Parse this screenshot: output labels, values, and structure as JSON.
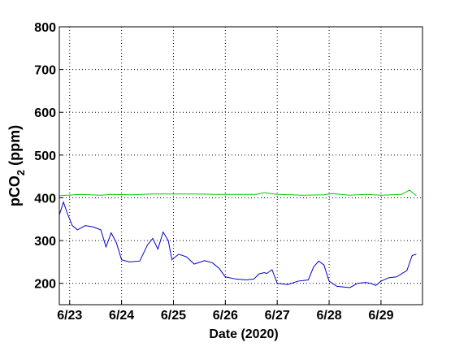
{
  "chart_data": {
    "type": "line",
    "ylabel_parts": [
      "pCO",
      "2",
      " (ppm)"
    ],
    "xlabel": "Date (2020)",
    "xlim": [
      22.8,
      29.8
    ],
    "ylim": [
      150,
      800
    ],
    "xticks": [
      {
        "value": 23,
        "label": "6/23"
      },
      {
        "value": 24,
        "label": "6/24"
      },
      {
        "value": 25,
        "label": "6/25"
      },
      {
        "value": 26,
        "label": "6/26"
      },
      {
        "value": 27,
        "label": "6/27"
      },
      {
        "value": 28,
        "label": "6/28"
      },
      {
        "value": 29,
        "label": "6/29"
      }
    ],
    "yticks": [
      200,
      300,
      400,
      500,
      600,
      700,
      800
    ],
    "grid": true,
    "series": [
      {
        "color": "#0000cc",
        "x": [
          22.8,
          22.88,
          22.95,
          23.05,
          23.15,
          23.3,
          23.45,
          23.6,
          23.7,
          23.8,
          23.9,
          24.0,
          24.15,
          24.35,
          24.5,
          24.6,
          24.7,
          24.8,
          24.9,
          24.97,
          25.1,
          25.25,
          25.4,
          25.6,
          25.75,
          25.88,
          26.0,
          26.2,
          26.4,
          26.55,
          26.65,
          26.75,
          26.8,
          26.9,
          27.0,
          27.2,
          27.4,
          27.6,
          27.7,
          27.8,
          27.9,
          28.0,
          28.15,
          28.4,
          28.55,
          28.7,
          28.8,
          28.9,
          29.0,
          29.15,
          29.3,
          29.5,
          29.6,
          29.68
        ],
        "values": [
          360,
          390,
          365,
          335,
          325,
          335,
          332,
          325,
          285,
          318,
          295,
          255,
          250,
          252,
          290,
          305,
          280,
          320,
          300,
          255,
          268,
          262,
          245,
          253,
          248,
          235,
          215,
          210,
          208,
          210,
          222,
          225,
          223,
          232,
          200,
          197,
          205,
          208,
          238,
          252,
          243,
          205,
          193,
          190,
          200,
          202,
          200,
          195,
          205,
          213,
          215,
          230,
          265,
          268
        ]
      },
      {
        "color": "#00cc00",
        "x": [
          22.8,
          23.2,
          23.6,
          23.8,
          24.2,
          24.6,
          25.0,
          25.4,
          25.8,
          26.2,
          26.6,
          26.75,
          27.0,
          27.5,
          27.9,
          28.05,
          28.4,
          28.7,
          29.0,
          29.4,
          29.55,
          29.68
        ],
        "values": [
          405,
          408,
          406,
          408,
          407,
          409,
          409,
          409,
          408,
          408,
          408,
          412,
          408,
          406,
          407,
          410,
          406,
          408,
          406,
          408,
          418,
          405
        ]
      }
    ]
  }
}
